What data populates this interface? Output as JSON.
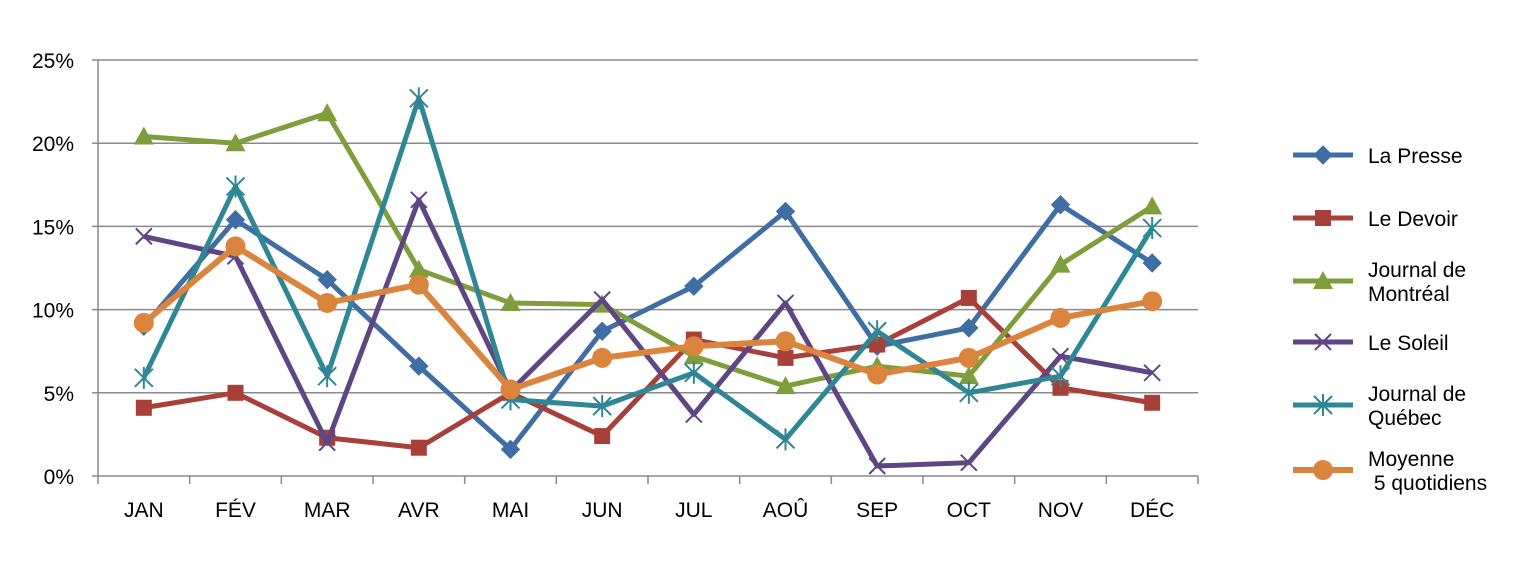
{
  "chart_data": {
    "type": "line",
    "title": "",
    "xlabel": "",
    "ylabel": "",
    "categories": [
      "JAN",
      "FÉV",
      "MAR",
      "AVR",
      "MAI",
      "JUN",
      "JUL",
      "AOÛ",
      "SEP",
      "OCT",
      "NOV",
      "DÉC"
    ],
    "ylim": [
      0,
      25
    ],
    "yticks": [
      "0%",
      "5%",
      "10%",
      "15%",
      "20%",
      "25%"
    ],
    "grid": true,
    "legend_position": "right",
    "series": [
      {
        "name": "La Presse",
        "color": "#3e6ea3",
        "marker": "diamond",
        "values": [
          9.0,
          15.4,
          11.8,
          6.6,
          1.6,
          8.7,
          11.4,
          15.9,
          7.8,
          8.9,
          16.3,
          12.8
        ]
      },
      {
        "name": "Le Devoir",
        "color": "#a8403a",
        "marker": "square",
        "values": [
          4.1,
          5.0,
          2.3,
          1.7,
          5.0,
          2.4,
          8.2,
          7.1,
          7.9,
          10.7,
          5.3,
          4.4
        ]
      },
      {
        "name": "Journal de Montréal",
        "color": "#7e9e3c",
        "marker": "triangle",
        "values": [
          20.4,
          20.0,
          21.8,
          12.4,
          10.4,
          10.3,
          7.2,
          5.4,
          6.6,
          6.0,
          12.7,
          16.2
        ]
      },
      {
        "name": "Le Soleil",
        "color": "#5d4683",
        "marker": "x",
        "values": [
          14.4,
          13.2,
          2.0,
          16.6,
          5.1,
          10.6,
          3.7,
          10.4,
          0.6,
          0.8,
          7.2,
          6.2
        ]
      },
      {
        "name": "Journal de Québec",
        "color": "#2f8796",
        "marker": "asterisk",
        "values": [
          5.9,
          17.4,
          6.0,
          22.7,
          4.6,
          4.2,
          6.2,
          2.2,
          8.7,
          5.0,
          6.0,
          14.9
        ]
      },
      {
        "name": "Moyenne 5 quotidiens",
        "color": "#db843d",
        "marker": "circle",
        "values": [
          9.2,
          13.8,
          10.4,
          11.5,
          5.2,
          7.1,
          7.8,
          8.1,
          6.1,
          7.1,
          9.5,
          10.5
        ]
      }
    ],
    "legend_lines": [
      [
        "La Presse"
      ],
      [
        "Le Devoir"
      ],
      [
        "Journal de",
        "Montréal"
      ],
      [
        "Le Soleil"
      ],
      [
        "Journal de",
        "Québec"
      ],
      [
        "Moyenne",
        " 5 quotidiens"
      ]
    ]
  }
}
